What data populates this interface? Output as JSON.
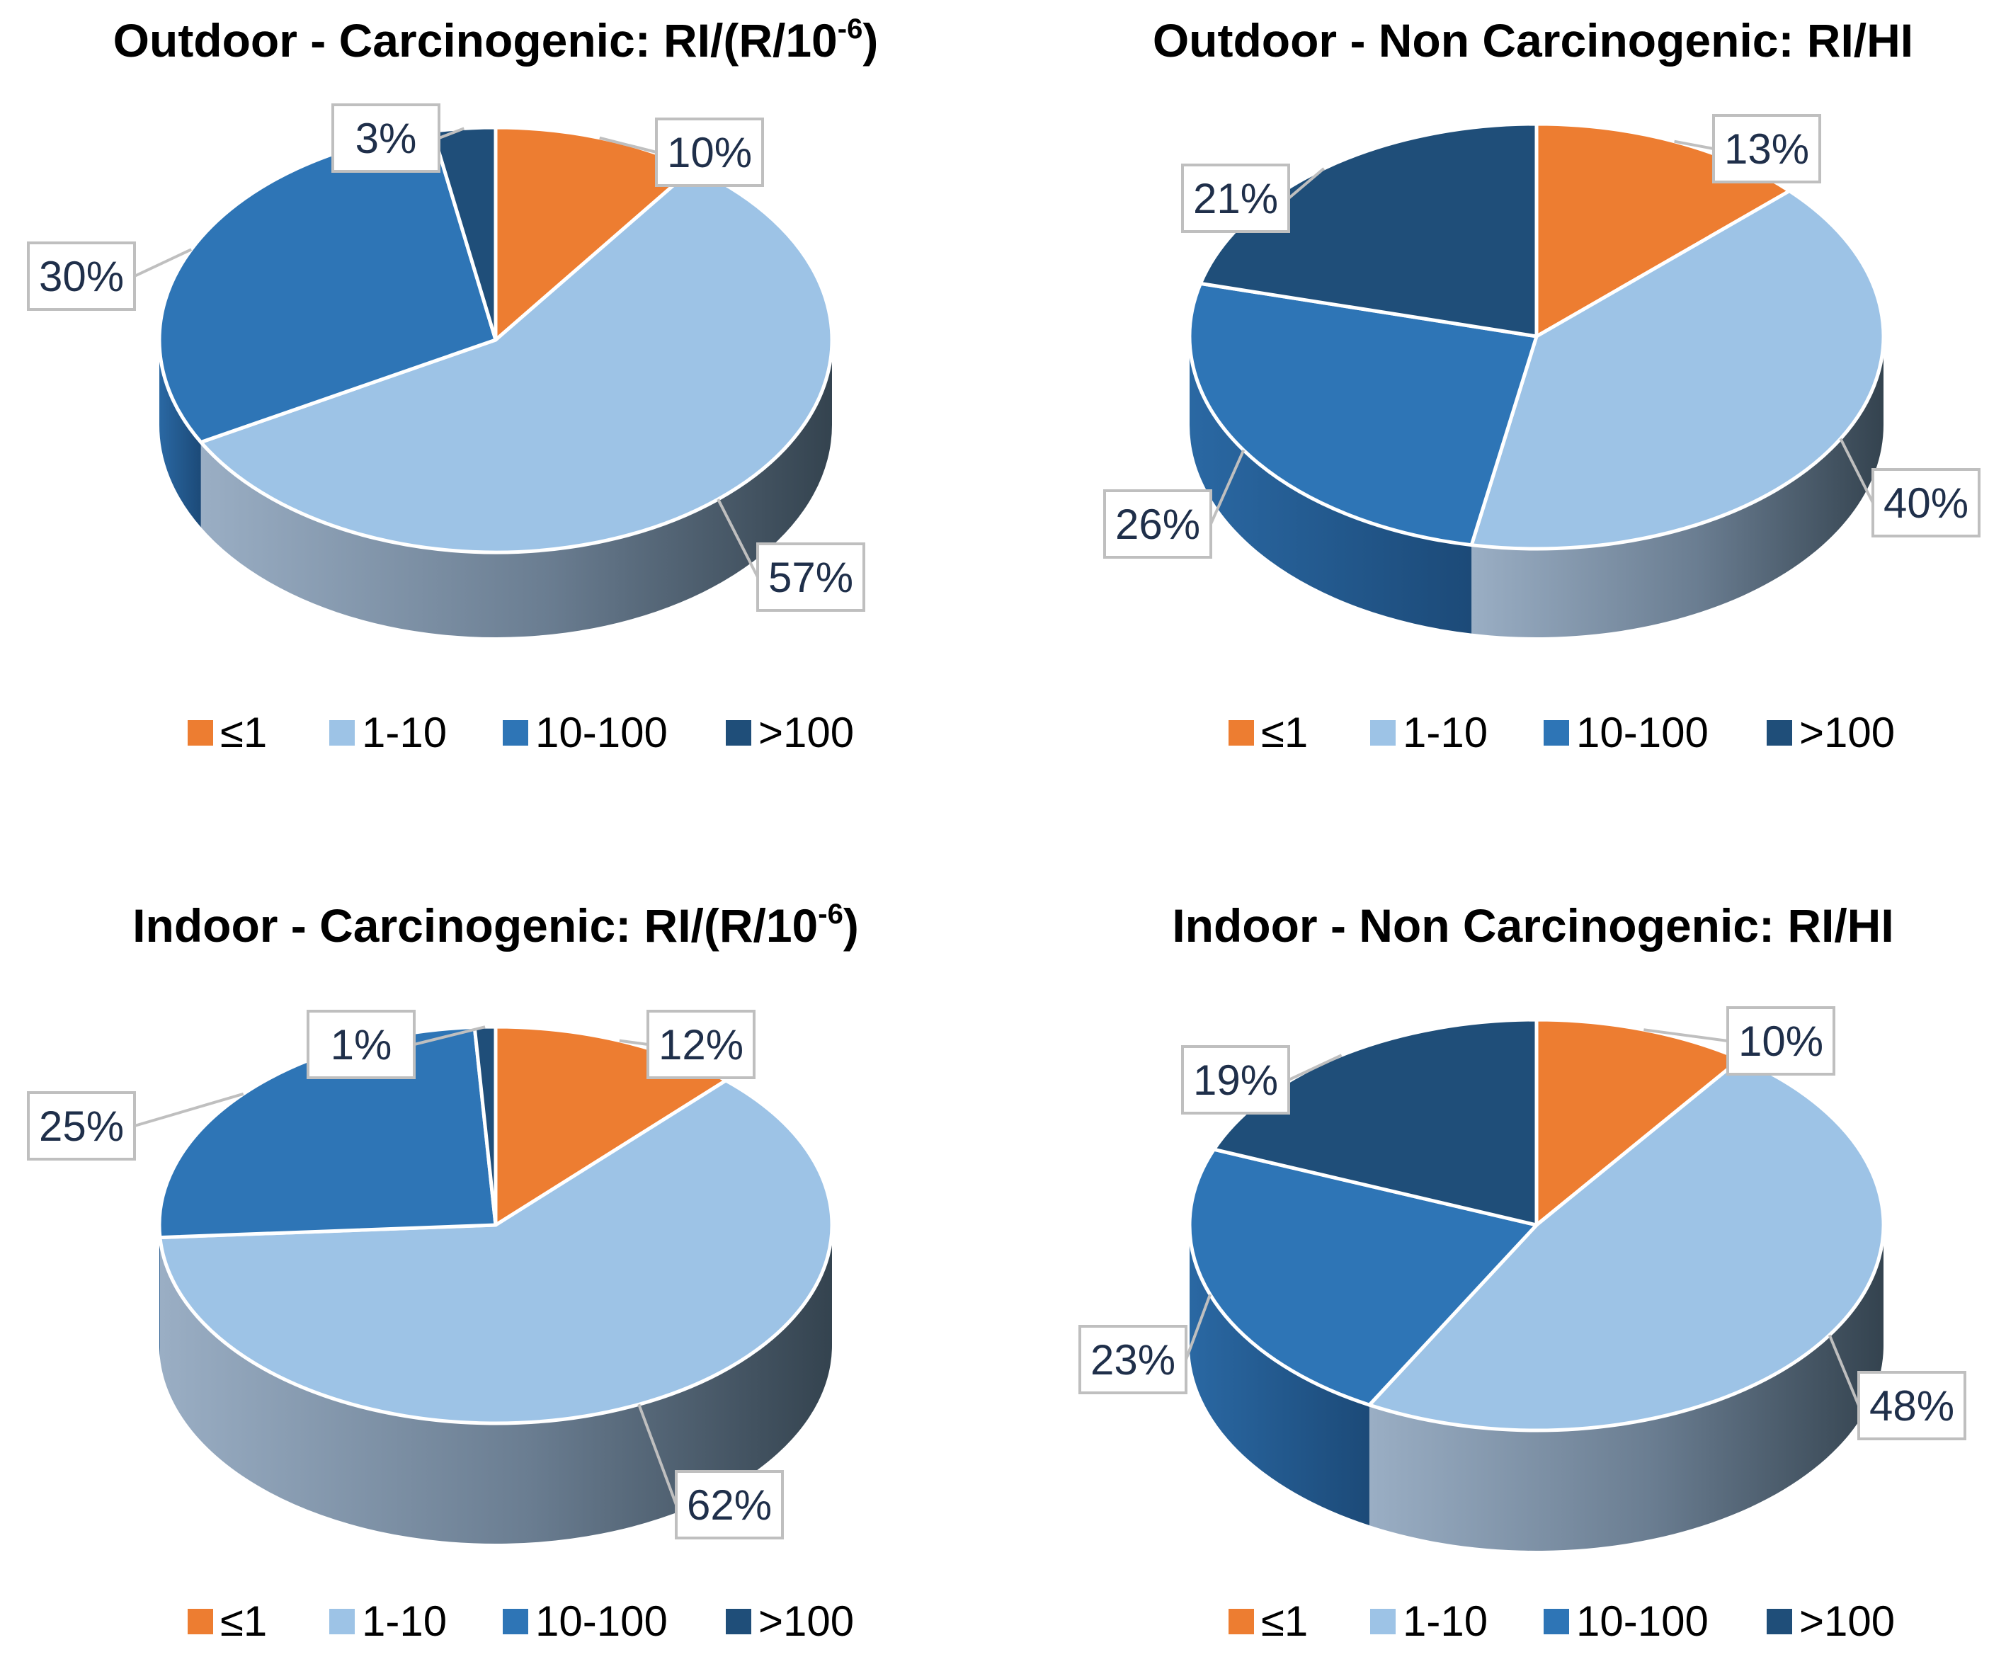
{
  "legend_labels": [
    "≤1",
    "1-10",
    "10-100",
    ">100"
  ],
  "colors": {
    "le1": "#ED7D31",
    "c1_10": "#9DC3E6",
    "c10_100": "#2E75B6",
    "gt100": "#1F4E79",
    "side_light": "#7c8fa3",
    "side_dark": "#3a4a5a"
  },
  "chart_data": [
    {
      "type": "pie",
      "title_main": "Outdoor - Carcinogenic: RI/(R/10",
      "title_sup": "-6",
      "title_tail": ")",
      "categories": [
        "≤1",
        "1-10",
        "10-100",
        ">100"
      ],
      "values": [
        10,
        57,
        30,
        3
      ],
      "labels": [
        "10%",
        "57%",
        "30%",
        "3%"
      ]
    },
    {
      "type": "pie",
      "title_main": "Outdoor - Non Carcinogenic: RI/HI",
      "title_sup": "",
      "title_tail": "",
      "categories": [
        "≤1",
        "1-10",
        "10-100",
        ">100"
      ],
      "values": [
        13,
        40,
        26,
        21
      ],
      "labels": [
        "13%",
        "40%",
        "26%",
        "21%"
      ]
    },
    {
      "type": "pie",
      "title_main": "Indoor - Carcinogenic: RI/(R/10",
      "title_sup": "-6",
      "title_tail": ")",
      "categories": [
        "≤1",
        "1-10",
        "10-100",
        ">100"
      ],
      "values": [
        12,
        62,
        25,
        1
      ],
      "labels": [
        "12%",
        "62%",
        "25%",
        "1%"
      ]
    },
    {
      "type": "pie",
      "title_main": "Indoor - Non Carcinogenic: RI/HI",
      "title_sup": "",
      "title_tail": "",
      "categories": [
        "≤1",
        "1-10",
        "10-100",
        ">100"
      ],
      "values": [
        10,
        48,
        23,
        19
      ],
      "labels": [
        "10%",
        "48%",
        "23%",
        "19%"
      ]
    }
  ]
}
